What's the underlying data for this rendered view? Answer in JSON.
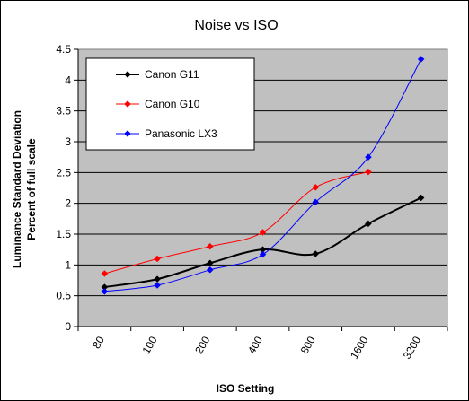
{
  "chart_data": {
    "type": "line",
    "title": "Noise vs ISO",
    "xlabel": "ISO Setting",
    "ylabel_lines": [
      "Luminance Standard Deviation",
      "Percent of full scale"
    ],
    "categories": [
      "80",
      "100",
      "200",
      "400",
      "800",
      "1600",
      "3200"
    ],
    "ylim": [
      0,
      4.5
    ],
    "yticks": [
      "0",
      "0.5",
      "1",
      "1.5",
      "2",
      "2.5",
      "3",
      "3.5",
      "4",
      "4.5"
    ],
    "grid": true,
    "legend_position": "top-left",
    "plot_background": "#c0c0c0",
    "series": [
      {
        "name": "Canon G11",
        "color": "#000000",
        "values": [
          0.64,
          0.77,
          1.03,
          1.25,
          1.18,
          1.67,
          2.09
        ]
      },
      {
        "name": "Canon G10",
        "color": "#ff0000",
        "values": [
          0.86,
          1.1,
          1.3,
          1.53,
          2.26,
          2.51,
          null
        ]
      },
      {
        "name": "Panasonic LX3",
        "color": "#0000ff",
        "values": [
          0.57,
          0.67,
          0.92,
          1.17,
          2.02,
          2.75,
          4.34
        ]
      }
    ]
  }
}
